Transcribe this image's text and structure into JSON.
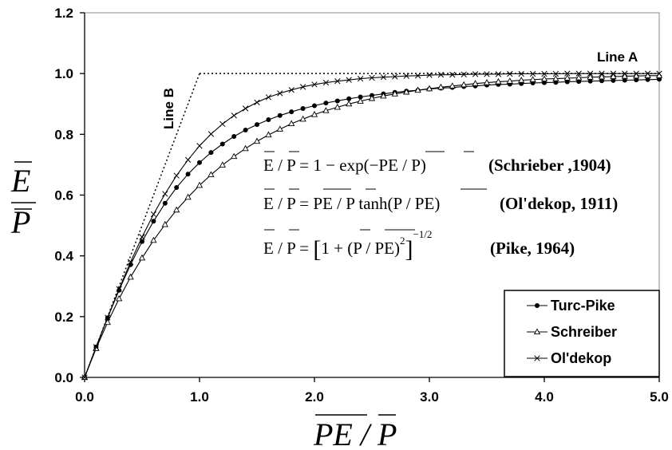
{
  "chart_data": {
    "type": "line",
    "title": "",
    "xlabel": "PE / P",
    "ylabel_num": "E",
    "ylabel_den": "P",
    "xlim": [
      0,
      5
    ],
    "ylim": [
      0,
      1.2
    ],
    "x_ticks": [
      "0.0",
      "1.0",
      "2.0",
      "3.0",
      "4.0",
      "5.0"
    ],
    "y_ticks": [
      "0.0",
      "0.2",
      "0.4",
      "0.6",
      "0.8",
      "1.0",
      "1.2"
    ],
    "grid": false,
    "legend_position": "bottom-right",
    "x": [
      0,
      0.1,
      0.2,
      0.3,
      0.4,
      0.5,
      0.6,
      0.7,
      0.8,
      0.9,
      1.0,
      1.1,
      1.2,
      1.3,
      1.4,
      1.5,
      1.6,
      1.7,
      1.8,
      1.9,
      2.0,
      2.1,
      2.2,
      2.3,
      2.4,
      2.5,
      2.6,
      2.7,
      2.8,
      2.9,
      3.0,
      3.1,
      3.2,
      3.3,
      3.4,
      3.5,
      3.6,
      3.7,
      3.8,
      3.9,
      4.0,
      4.1,
      4.2,
      4.3,
      4.4,
      4.5,
      4.6,
      4.7,
      4.8,
      4.9,
      5.0
    ],
    "series": [
      {
        "name": "Turc-Pike",
        "marker": "circle",
        "values": [
          0,
          0.1,
          0.196,
          0.287,
          0.371,
          0.447,
          0.514,
          0.573,
          0.625,
          0.669,
          0.707,
          0.74,
          0.768,
          0.793,
          0.814,
          0.832,
          0.848,
          0.862,
          0.874,
          0.885,
          0.894,
          0.903,
          0.91,
          0.917,
          0.923,
          0.928,
          0.933,
          0.938,
          0.942,
          0.945,
          0.949,
          0.952,
          0.954,
          0.957,
          0.959,
          0.962,
          0.964,
          0.965,
          0.967,
          0.969,
          0.97,
          0.971,
          0.973,
          0.974,
          0.975,
          0.976,
          0.977,
          0.978,
          0.979,
          0.98,
          0.981
        ]
      },
      {
        "name": "Schreiber",
        "marker": "triangle",
        "values": [
          0,
          0.095,
          0.181,
          0.259,
          0.33,
          0.393,
          0.451,
          0.503,
          0.551,
          0.593,
          0.632,
          0.667,
          0.699,
          0.727,
          0.753,
          0.777,
          0.798,
          0.817,
          0.835,
          0.85,
          0.865,
          0.878,
          0.889,
          0.9,
          0.909,
          0.918,
          0.926,
          0.933,
          0.939,
          0.945,
          0.95,
          0.955,
          0.959,
          0.963,
          0.967,
          0.97,
          0.973,
          0.975,
          0.978,
          0.98,
          0.982,
          0.983,
          0.985,
          0.986,
          0.988,
          0.989,
          0.99,
          0.991,
          0.992,
          0.993,
          0.993
        ]
      },
      {
        "name": "Ol'dekop",
        "marker": "cross",
        "values": [
          0,
          0.1,
          0.197,
          0.291,
          0.38,
          0.462,
          0.537,
          0.604,
          0.664,
          0.716,
          0.762,
          0.801,
          0.834,
          0.862,
          0.885,
          0.905,
          0.922,
          0.935,
          0.946,
          0.956,
          0.964,
          0.97,
          0.975,
          0.979,
          0.983,
          0.986,
          0.988,
          0.99,
          0.992,
          0.993,
          0.995,
          0.996,
          0.996,
          0.997,
          0.998,
          0.998,
          0.998,
          0.999,
          0.999,
          0.999,
          0.999,
          0.999,
          1.0,
          1.0,
          1.0,
          1.0,
          1.0,
          1.0,
          1.0,
          1.0,
          1.0
        ]
      }
    ],
    "reference_lines": [
      {
        "name": "Line A",
        "points": [
          [
            1,
            1
          ],
          [
            5,
            1
          ]
        ]
      },
      {
        "name": "Line B",
        "points": [
          [
            0,
            0
          ],
          [
            1,
            1
          ]
        ]
      }
    ],
    "annotations": {
      "line_a": "Line A",
      "line_b": "Line B",
      "eq1": {
        "lhs": "E / P = 1 − exp(−",
        "over": "PE",
        "rest": " / P)",
        "cite": "(Schrieber ,1904)"
      },
      "eq2": {
        "lhs": "E / P = ",
        "over": "PE",
        "mid": " / P tanh(P / ",
        "over2": "PE",
        "rest": ")",
        "cite": "(Ol'dekop, 1911)"
      },
      "eq3": {
        "lhs": "E / P = ",
        "bracket": "1 + (P / PE)",
        "sq": "2",
        "exp": "−1/2",
        "cite": "(Pike, 1964)"
      }
    }
  }
}
